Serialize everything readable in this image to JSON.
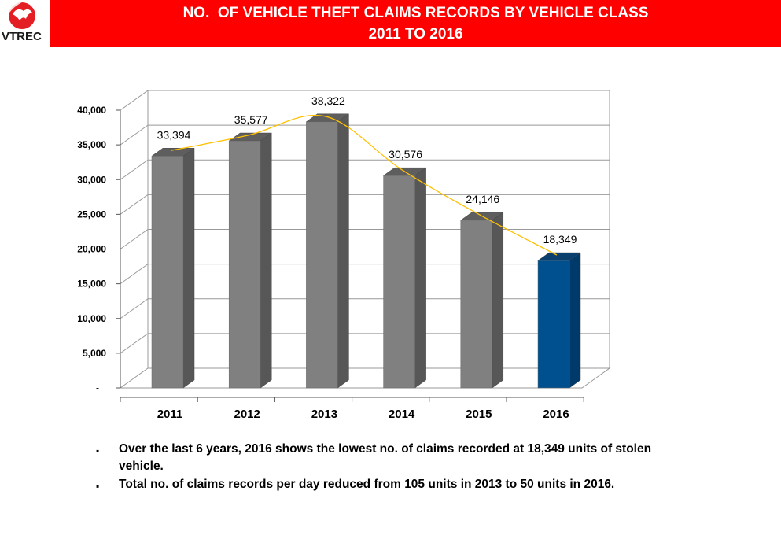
{
  "header": {
    "logo_text": "VTREC",
    "title_line1": "NO.  OF VEHICLE THEFT CLAIMS RECORDS BY VEHICLE CLASS",
    "title_line2": "2011 TO 2016"
  },
  "colors": {
    "banner": "#ff0000",
    "bar_gray": "#808080",
    "bar_highlight": "#00508f",
    "trend_line": "#ffc000"
  },
  "chart_data": {
    "type": "bar",
    "categories": [
      "2011",
      "2012",
      "2013",
      "2014",
      "2015",
      "2016"
    ],
    "values": [
      33394,
      35577,
      38322,
      30576,
      24146,
      18349
    ],
    "data_labels": [
      "33,394",
      "35,577",
      "38,322",
      "30,576",
      "24,146",
      "18,349"
    ],
    "highlight_index": 5,
    "trendline": true,
    "ylim": [
      0,
      40000
    ],
    "yticks": [
      0,
      5000,
      10000,
      15000,
      20000,
      25000,
      30000,
      35000,
      40000
    ],
    "ytick_labels": [
      "-",
      "5,000",
      "10,000",
      "15,000",
      "20,000",
      "25,000",
      "30,000",
      "35,000",
      "40,000"
    ],
    "grid": true,
    "title": "",
    "xlabel": "",
    "ylabel": ""
  },
  "notes": [
    "Over the last 6 years, 2016 shows the lowest no. of claims recorded at 18,349 units of stolen vehicle.",
    "Total no. of claims records per day reduced from 105 units  in 2013 to 50 units in 2016."
  ]
}
